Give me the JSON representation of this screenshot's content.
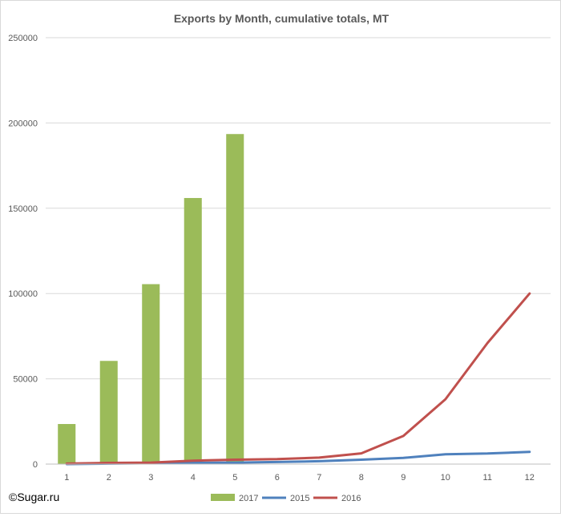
{
  "chart_data": {
    "type": "bar+line",
    "title": "Exports by Month, cumulative totals, MT",
    "xlabel": "",
    "ylabel": "",
    "categories": [
      "1",
      "2",
      "3",
      "4",
      "5",
      "6",
      "7",
      "8",
      "9",
      "10",
      "11",
      "12"
    ],
    "ylim": [
      0,
      250000
    ],
    "yticks": [
      0,
      50000,
      100000,
      150000,
      200000,
      250000
    ],
    "grid": true,
    "legend_position": "bottom",
    "series": [
      {
        "name": "2017",
        "type": "bar",
        "color": "#9bbb59",
        "values": [
          23500,
          60500,
          105500,
          156000,
          193500,
          null,
          null,
          null,
          null,
          null,
          null,
          null
        ]
      },
      {
        "name": "2015",
        "type": "line",
        "color": "#4f81bd",
        "values": [
          0,
          300,
          500,
          700,
          900,
          1200,
          1700,
          2600,
          3600,
          5800,
          6200,
          7200
        ]
      },
      {
        "name": "2016",
        "type": "line",
        "color": "#c0504d",
        "values": [
          300,
          700,
          900,
          2000,
          2600,
          2900,
          3800,
          6300,
          16500,
          38000,
          71000,
          100000
        ]
      }
    ]
  },
  "footer": {
    "copyright": "©Sugar.ru"
  }
}
